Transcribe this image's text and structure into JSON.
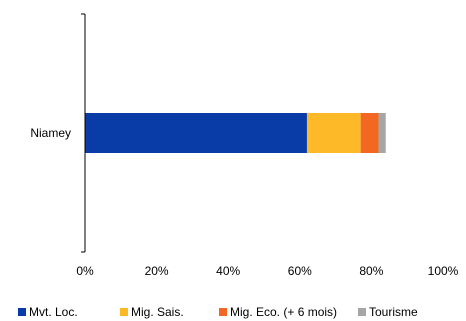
{
  "chart_data": {
    "type": "bar",
    "orientation": "horizontal",
    "stacked": true,
    "categories": [
      "Niamey"
    ],
    "series": [
      {
        "name": "Mvt. Loc.",
        "values": [
          62
        ],
        "color": "#0A3CA8"
      },
      {
        "name": "Mig. Sais.",
        "values": [
          15
        ],
        "color": "#FDB927"
      },
      {
        "name": "Mig. Eco. (+ 6 mois)",
        "values": [
          5
        ],
        "color": "#F26722"
      },
      {
        "name": "Tourisme",
        "values": [
          2
        ],
        "color": "#A6A6A6"
      }
    ],
    "xlim": [
      0,
      100
    ],
    "xticks": [
      "0%",
      "20%",
      "40%",
      "60%",
      "80%",
      "100%"
    ],
    "grid": false,
    "legend_position": "bottom"
  }
}
